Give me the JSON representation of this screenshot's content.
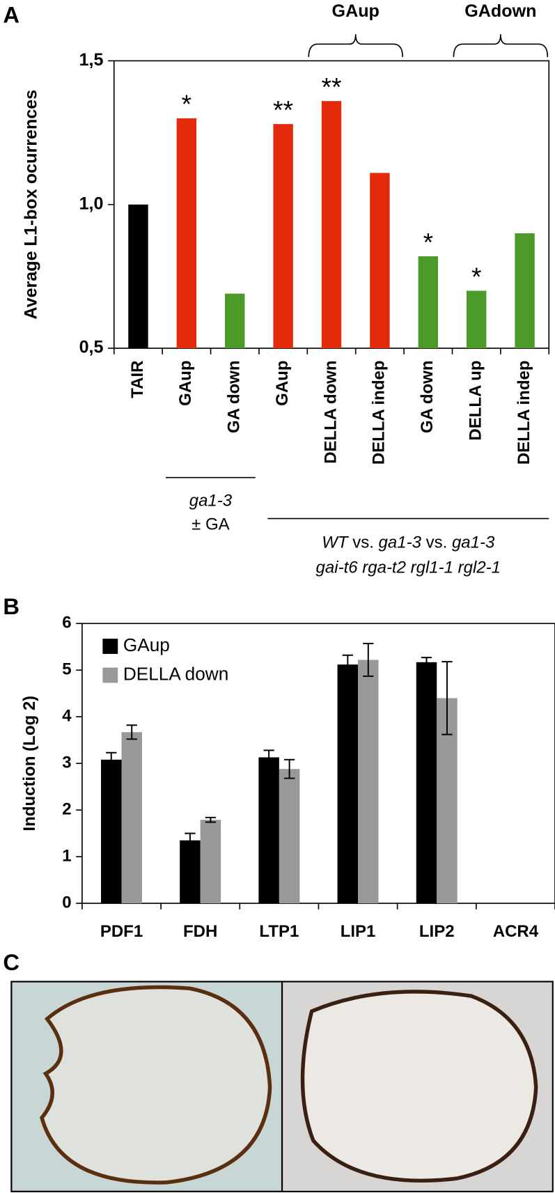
{
  "chart_data": [
    {
      "type": "bar",
      "panel": "A",
      "y_label": "Average L1-box ocurrences",
      "categories": [
        "TAIR",
        "GAup",
        "GA down",
        "GAup",
        "DELLA down",
        "DELLA indep",
        "GA down",
        "DELLA up",
        "DELLA indep"
      ],
      "values": [
        1.0,
        1.3,
        0.69,
        1.28,
        1.36,
        1.11,
        0.82,
        0.7,
        0.9
      ],
      "colors": [
        "#000000",
        "#e32b0b",
        "#4c9a2a",
        "#e32b0b",
        "#e32b0b",
        "#e32b0b",
        "#4c9a2a",
        "#4c9a2a",
        "#4c9a2a"
      ],
      "value_labels": [
        null,
        "*",
        null,
        "**",
        "**",
        null,
        "*",
        "*",
        null
      ],
      "ylim": [
        0.5,
        1.5
      ],
      "yticks": [
        {
          "value": 0.5,
          "label": "0,5"
        },
        {
          "value": 1.0,
          "label": "1,0"
        },
        {
          "value": 1.5,
          "label": "1,5"
        }
      ],
      "brackets": [
        "GAup",
        "GAdown"
      ],
      "groups": [
        {
          "lines": [
            [
              {
                "text": "ga1-3",
                "italic": true
              }
            ],
            [
              {
                "text": "± GA",
                "italic": false
              }
            ]
          ]
        },
        {
          "lines": [
            [
              {
                "text": "WT",
                "italic": true
              },
              {
                "text": " vs. ",
                "italic": false
              },
              {
                "text": "ga1-3",
                "italic": true
              },
              {
                "text": " vs. ",
                "italic": false
              },
              {
                "text": "ga1-3",
                "italic": true
              }
            ],
            [
              {
                "text": "gai-t6 rga-t2 rgl1-1 rgl2-1",
                "italic": true
              }
            ]
          ]
        }
      ]
    },
    {
      "type": "grouped_bar",
      "panel": "B",
      "y_label": "Induction (Log 2)",
      "categories": [
        "PDF1",
        "FDH",
        "LTP1",
        "LIP1",
        "LIP2",
        "ACR4"
      ],
      "series": [
        {
          "name": "GAup",
          "color": "#000000",
          "values": [
            3.08,
            1.35,
            3.13,
            5.12,
            5.17,
            null
          ],
          "errors": [
            0.15,
            0.15,
            0.15,
            0.2,
            0.1,
            null
          ]
        },
        {
          "name": "DELLA down",
          "color": "#999999",
          "values": [
            3.67,
            1.79,
            2.88,
            5.22,
            4.4,
            null
          ],
          "errors": [
            0.15,
            0.05,
            0.2,
            0.35,
            0.78,
            null
          ]
        }
      ],
      "ylim": [
        0,
        6
      ],
      "yticks": [
        0,
        1,
        2,
        3,
        4,
        5,
        6
      ],
      "legend": "upper left"
    }
  ],
  "image_panel": {
    "label": "C"
  }
}
